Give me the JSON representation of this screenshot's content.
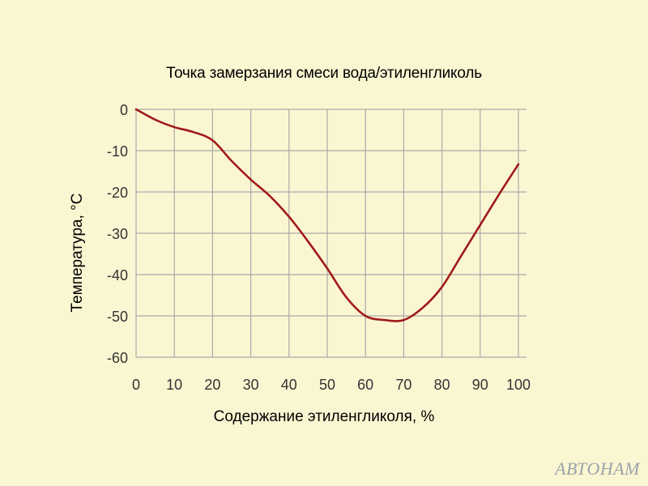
{
  "chart_data": {
    "type": "line",
    "title": "Точка замерзания смеси вода/этиленгликоль",
    "xlabel": "Содержание этиленгликоля, %",
    "ylabel": "Температура, °C",
    "xlim": [
      0,
      100
    ],
    "ylim": [
      -60,
      0
    ],
    "x_ticks": [
      0,
      10,
      20,
      30,
      40,
      50,
      60,
      70,
      80,
      90,
      100
    ],
    "y_ticks": [
      0,
      -10,
      -20,
      -30,
      -40,
      -50,
      -60
    ],
    "grid": true,
    "line_color": "#a01a1a",
    "series": [
      {
        "x": [
          0,
          5,
          10,
          15,
          20,
          25,
          30,
          35,
          40,
          45,
          50,
          55,
          60,
          65,
          70,
          75,
          80,
          85,
          90,
          95,
          100
        ],
        "y": [
          0,
          -2.5,
          -4.3,
          -5.5,
          -7.5,
          -12.5,
          -17,
          -21,
          -26,
          -32,
          -38.5,
          -45.5,
          -50,
          -51,
          -51,
          -48,
          -43,
          -35.5,
          -28,
          -20.5,
          -13.3
        ]
      }
    ]
  },
  "watermark": "АВТОНАМ"
}
